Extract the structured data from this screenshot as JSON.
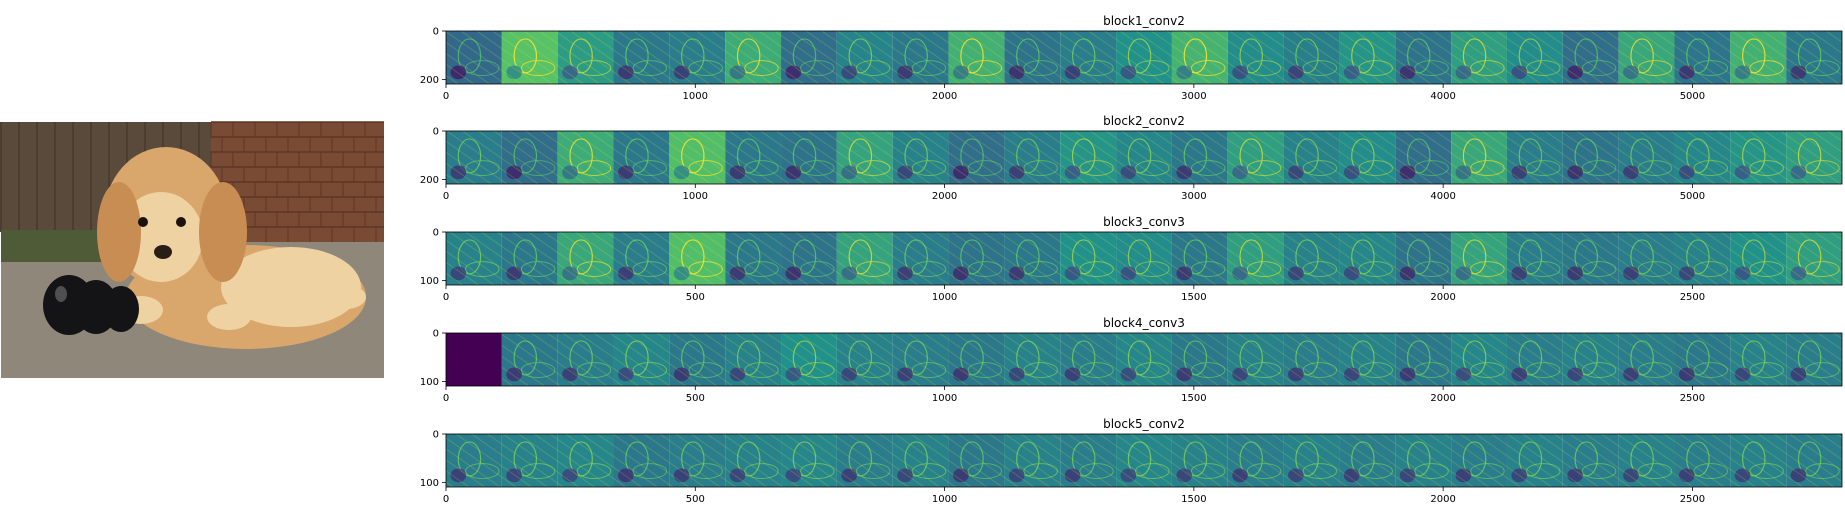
{
  "photo": {
    "subject": "golden retriever puppy lying beside a black rubber chew toy",
    "colors": {
      "fur": "#d9a66b",
      "fur_light": "#efd2a2",
      "toy": "#141416",
      "ground": "#8f877a",
      "wall": "#7a4b34",
      "fence": "#5a4a3c"
    }
  },
  "colormap": [
    "#440154",
    "#3b528b",
    "#21918c",
    "#5ec962",
    "#fde725"
  ],
  "chart_data": [
    {
      "type": "heatmap",
      "title": "block1_conv2",
      "x_ticks": [
        0,
        1000,
        2000,
        3000,
        4000,
        5000
      ],
      "y_ticks": [
        0,
        200
      ],
      "xlim": [
        0,
        5600
      ],
      "ylim": [
        0,
        218
      ],
      "num_tiles": 25,
      "tile_size": 224,
      "tile_tones": [
        0.34,
        0.72,
        0.55,
        0.4,
        0.42,
        0.62,
        0.36,
        0.45,
        0.4,
        0.64,
        0.38,
        0.42,
        0.5,
        0.65,
        0.48,
        0.43,
        0.52,
        0.38,
        0.56,
        0.48,
        0.36,
        0.6,
        0.39,
        0.64,
        0.4
      ]
    },
    {
      "type": "heatmap",
      "title": "block2_conv2",
      "x_ticks": [
        0,
        1000,
        2000,
        3000,
        4000,
        5000
      ],
      "y_ticks": [
        0,
        200
      ],
      "xlim": [
        0,
        5600
      ],
      "ylim": [
        0,
        218
      ],
      "num_tiles": 25,
      "tile_size": 224,
      "tile_tones": [
        0.42,
        0.36,
        0.62,
        0.4,
        0.7,
        0.4,
        0.38,
        0.58,
        0.44,
        0.36,
        0.42,
        0.52,
        0.46,
        0.4,
        0.56,
        0.44,
        0.48,
        0.36,
        0.6,
        0.42,
        0.38,
        0.42,
        0.46,
        0.52,
        0.56
      ]
    },
    {
      "type": "heatmap",
      "title": "block3_conv3",
      "x_ticks": [
        0,
        500,
        1000,
        1500,
        2000,
        2500
      ],
      "y_ticks": [
        0,
        100
      ],
      "xlim": [
        0,
        2800
      ],
      "ylim": [
        0,
        109
      ],
      "num_tiles": 25,
      "tile_size": 112,
      "tile_tones": [
        0.44,
        0.4,
        0.6,
        0.42,
        0.7,
        0.4,
        0.38,
        0.58,
        0.42,
        0.38,
        0.4,
        0.5,
        0.48,
        0.4,
        0.56,
        0.44,
        0.46,
        0.38,
        0.58,
        0.42,
        0.4,
        0.42,
        0.44,
        0.5,
        0.56
      ]
    },
    {
      "type": "heatmap",
      "title": "block4_conv3",
      "x_ticks": [
        0,
        500,
        1000,
        1500,
        2000,
        2500
      ],
      "y_ticks": [
        0,
        100
      ],
      "xlim": [
        0,
        2800
      ],
      "ylim": [
        0,
        109
      ],
      "num_tiles": 25,
      "tile_size": 112,
      "tile_tones": [
        0.0,
        0.4,
        0.42,
        0.46,
        0.4,
        0.44,
        0.5,
        0.44,
        0.42,
        0.4,
        0.44,
        0.42,
        0.46,
        0.4,
        0.44,
        0.42,
        0.44,
        0.4,
        0.46,
        0.42,
        0.44,
        0.42,
        0.4,
        0.44,
        0.42
      ]
    },
    {
      "type": "heatmap",
      "title": "block5_conv2",
      "x_ticks": [
        0,
        500,
        1000,
        1500,
        2000,
        2500
      ],
      "y_ticks": [
        0,
        100
      ],
      "xlim": [
        0,
        2800
      ],
      "ylim": [
        0,
        109
      ],
      "num_tiles": 25,
      "tile_size": 112,
      "tile_tones": [
        0.42,
        0.44,
        0.46,
        0.4,
        0.42,
        0.44,
        0.46,
        0.42,
        0.44,
        0.4,
        0.44,
        0.42,
        0.46,
        0.44,
        0.42,
        0.44,
        0.42,
        0.44,
        0.42,
        0.44,
        0.42,
        0.44,
        0.42,
        0.44,
        0.42
      ]
    }
  ]
}
